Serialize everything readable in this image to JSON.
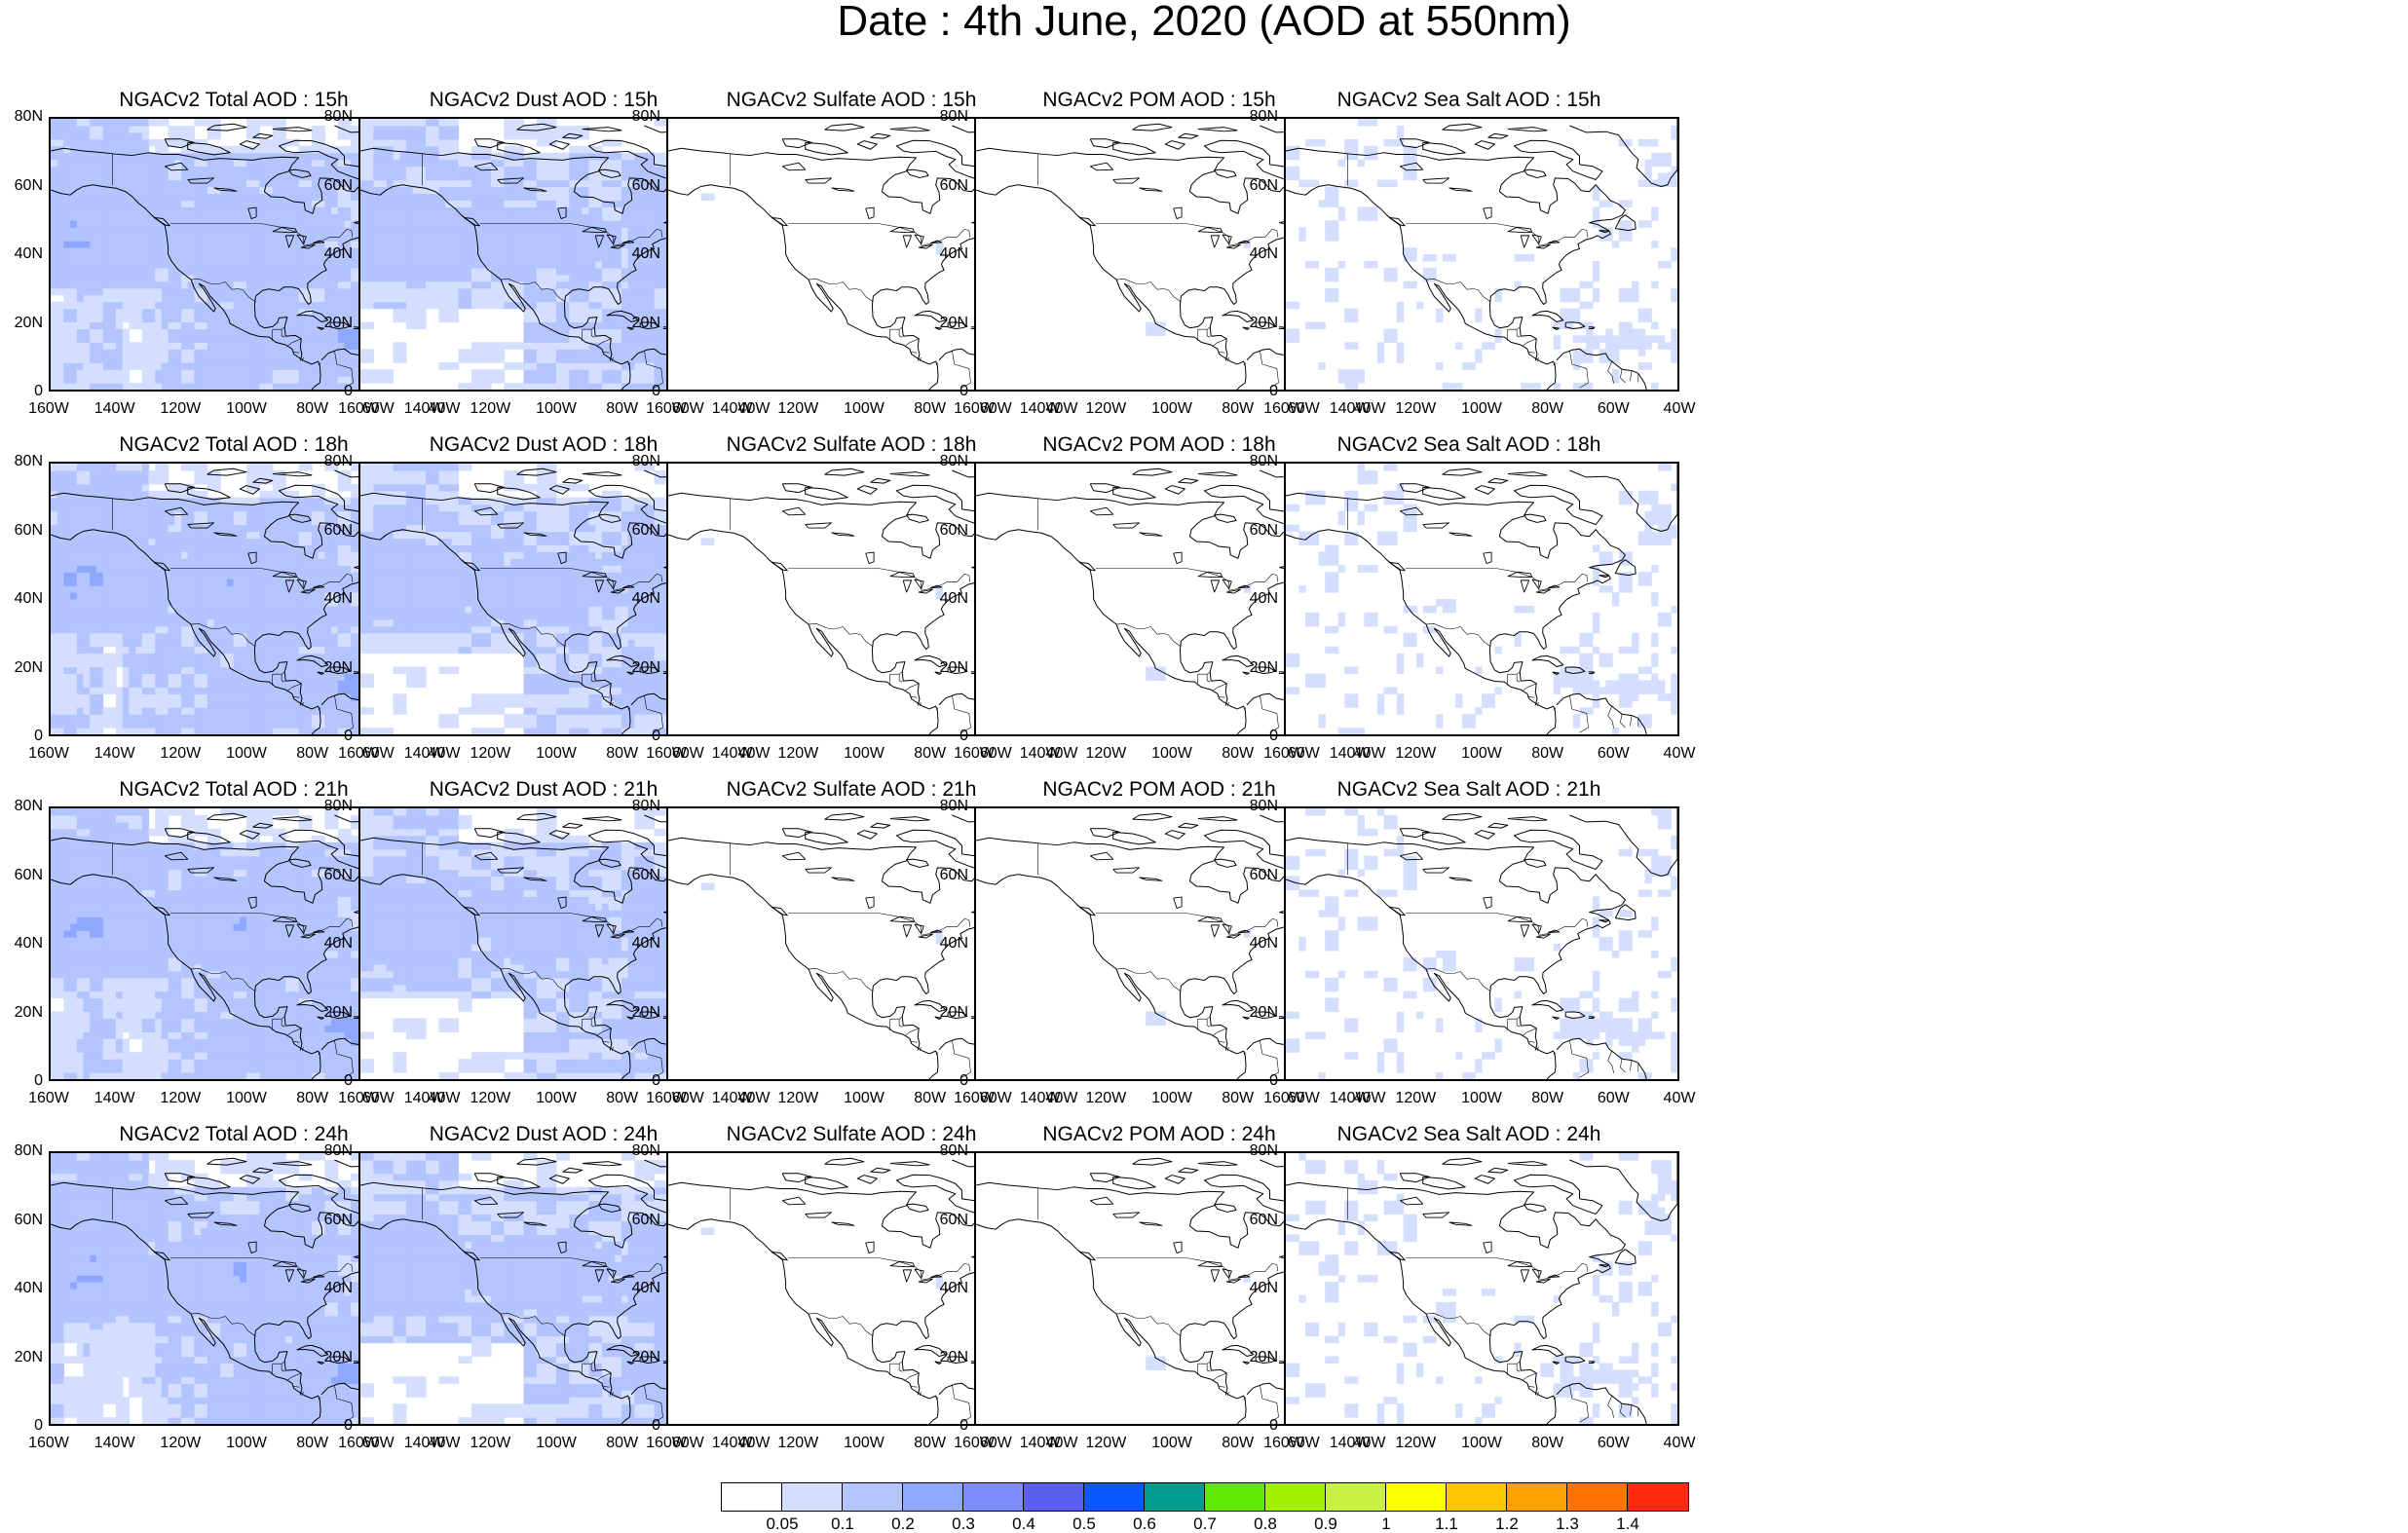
{
  "title": "Date : 4th June, 2020 (AOD at 550nm)",
  "rows": [
    {
      "panels": [
        {
          "title": "NGACv2 Total AOD : 15h",
          "field": "total"
        },
        {
          "title": "NGACv2 Dust AOD : 15h",
          "field": "dust"
        },
        {
          "title": "NGACv2 Sulfate AOD : 15h",
          "field": "sulfate"
        },
        {
          "title": "NGACv2 POM AOD : 15h",
          "field": "pom"
        },
        {
          "title": "NGACv2 Sea Salt AOD : 15h",
          "field": "seasalt"
        }
      ]
    },
    {
      "panels": [
        {
          "title": "NGACv2 Total AOD : 18h",
          "field": "total"
        },
        {
          "title": "NGACv2 Dust AOD : 18h",
          "field": "dust"
        },
        {
          "title": "NGACv2 Sulfate AOD : 18h",
          "field": "sulfate"
        },
        {
          "title": "NGACv2 POM AOD : 18h",
          "field": "pom"
        },
        {
          "title": "NGACv2 Sea Salt AOD : 18h",
          "field": "seasalt"
        }
      ]
    },
    {
      "panels": [
        {
          "title": "NGACv2 Total AOD : 21h",
          "field": "total"
        },
        {
          "title": "NGACv2 Dust AOD : 21h",
          "field": "dust"
        },
        {
          "title": "NGACv2 Sulfate AOD : 21h",
          "field": "sulfate"
        },
        {
          "title": "NGACv2 POM AOD : 21h",
          "field": "pom"
        },
        {
          "title": "NGACv2 Sea Salt AOD : 21h",
          "field": "seasalt"
        }
      ]
    },
    {
      "panels": [
        {
          "title": "NGACv2 Total AOD : 24h",
          "field": "total"
        },
        {
          "title": "NGACv2 Dust AOD : 24h",
          "field": "dust"
        },
        {
          "title": "NGACv2 Sulfate AOD : 24h",
          "field": "sulfate"
        },
        {
          "title": "NGACv2 POM AOD : 24h",
          "field": "pom"
        },
        {
          "title": "NGACv2 Sea Salt  AOD : 24h",
          "field": "seasalt"
        }
      ]
    }
  ],
  "x_ticks": [
    "160W",
    "140W",
    "120W",
    "100W",
    "80W",
    "60W",
    "40W"
  ],
  "y_ticks": [
    "0",
    "20N",
    "40N",
    "60N",
    "80N"
  ],
  "legend": {
    "colors": [
      "#ffffff",
      "#d4deff",
      "#b3c4ff",
      "#8fa8ff",
      "#7d8cff",
      "#5a5fef",
      "#0a57ff",
      "#009c8f",
      "#5eea00",
      "#a0f200",
      "#c8f040",
      "#ffff00",
      "#ffc400",
      "#ffa000",
      "#ff7300",
      "#ff2a10"
    ],
    "labels": [
      "0.05",
      "0.1",
      "0.2",
      "0.3",
      "0.4",
      "0.5",
      "0.6",
      "0.7",
      "0.8",
      "0.9",
      "1",
      "1.1",
      "1.2",
      "1.3",
      "1.4"
    ]
  }
}
